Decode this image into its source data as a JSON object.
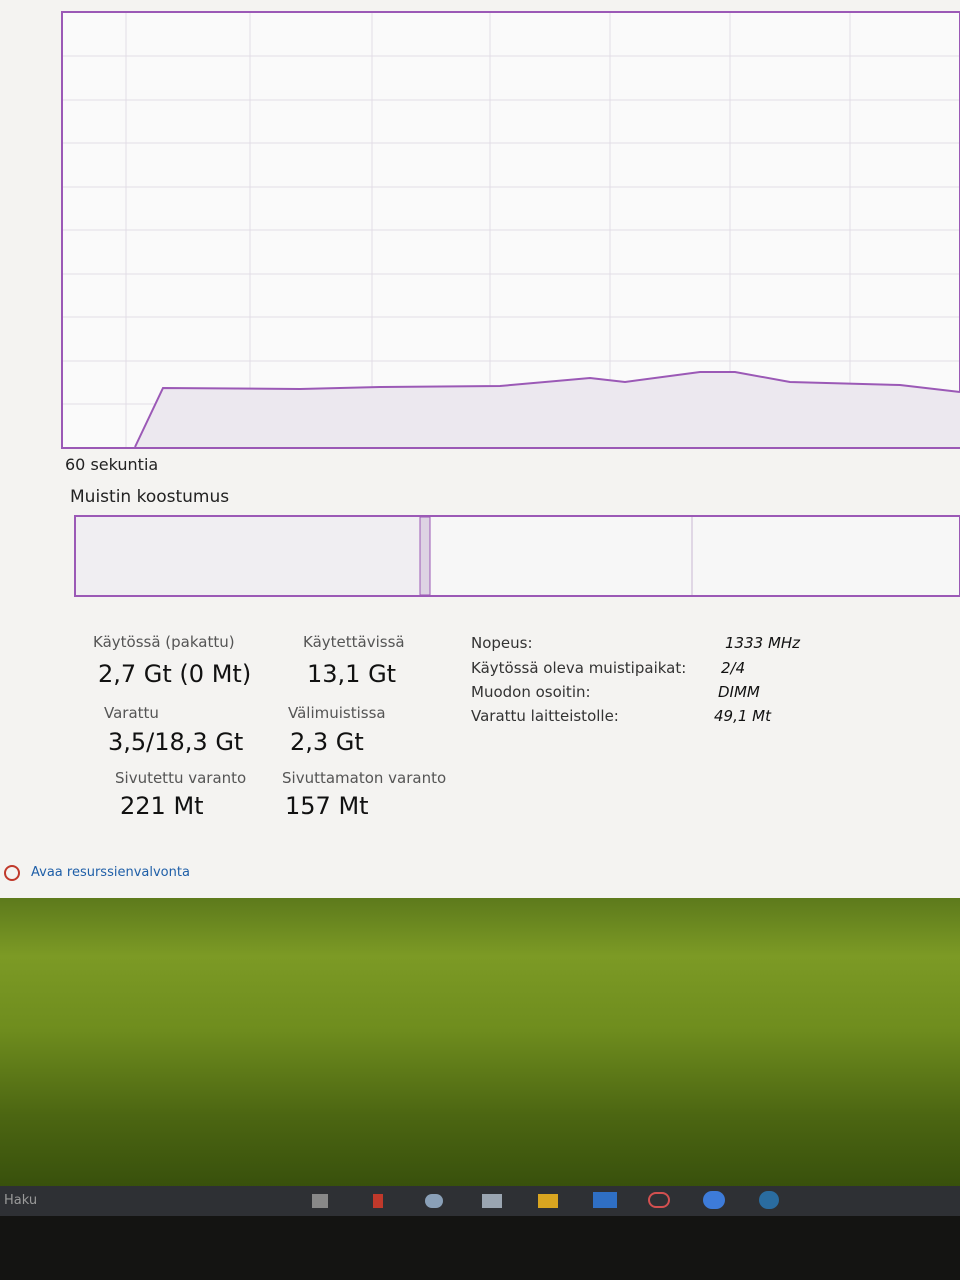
{
  "graph": {
    "time_label": "60 sekuntia"
  },
  "composition": {
    "title": "Muistin koostumus"
  },
  "stats": [
    {
      "label": "Käytössä (pakattu)",
      "value": "2,7 Gt (0 Mt)"
    },
    {
      "label": "Käytettävissä",
      "value": "13,1 Gt"
    },
    {
      "label": "Varattu",
      "value": "3,5/18,3 Gt"
    },
    {
      "label": "Välimuistissa",
      "value": "2,3 Gt"
    },
    {
      "label": "Sivutettu varanto",
      "value": "221 Mt"
    },
    {
      "label": "Sivuttamaton varanto",
      "value": "157 Mt"
    }
  ],
  "details": [
    {
      "label": "Nopeus:",
      "value": "1333 MHz"
    },
    {
      "label": "Käytössä oleva muistipaikat:",
      "value": "2/4"
    },
    {
      "label": "Muodon osoitin:",
      "value": "DIMM"
    },
    {
      "label": "Varattu laitteistolle:",
      "value": "49,1 Mt"
    }
  ],
  "link": "Avaa resurssienvalvonta",
  "taskbar": {
    "search": "Haku"
  }
}
